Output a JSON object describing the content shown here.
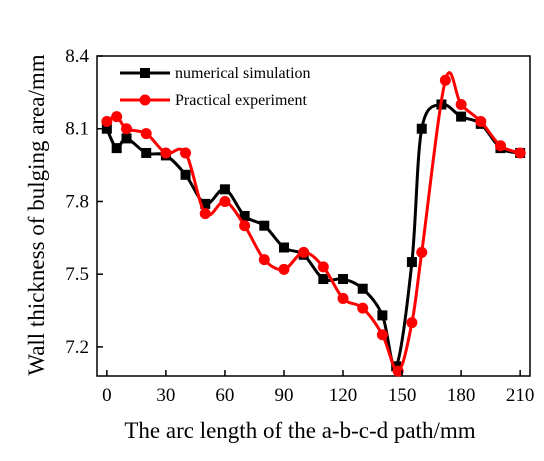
{
  "chart_data": {
    "type": "line",
    "xlabel": "The arc length of the a-b-c-d path/mm",
    "ylabel": "Wall thickness of bulging area/mm",
    "xlim": [
      -5,
      215
    ],
    "ylim": [
      7.08,
      8.4
    ],
    "xticks": [
      0,
      30,
      60,
      90,
      120,
      150,
      180,
      210
    ],
    "yticks": [
      7.2,
      7.5,
      7.8,
      8.1,
      8.4
    ],
    "xtick_labels": [
      "0",
      "30",
      "60",
      "90",
      "120",
      "150",
      "180",
      "210"
    ],
    "ytick_labels": [
      "7.2",
      "7.5",
      "7.8",
      "8.1",
      "8.4"
    ],
    "legend_position": "top-left",
    "grid": false,
    "series": [
      {
        "name": "numerical simulation",
        "color": "#000000",
        "marker": "square",
        "smooth": true,
        "x": [
          0,
          5,
          10,
          20,
          30,
          40,
          50,
          60,
          70,
          80,
          90,
          100,
          110,
          120,
          130,
          140,
          147,
          155,
          160,
          170,
          180,
          190,
          200,
          210
        ],
        "y": [
          8.1,
          8.02,
          8.06,
          8.0,
          7.99,
          7.91,
          7.79,
          7.85,
          7.74,
          7.7,
          7.61,
          7.58,
          7.48,
          7.48,
          7.44,
          7.33,
          7.12,
          7.55,
          8.1,
          8.2,
          8.15,
          8.12,
          8.02,
          8.0
        ]
      },
      {
        "name": "Practical experiment",
        "color": "#ff0000",
        "marker": "circle",
        "smooth": true,
        "x": [
          0,
          5,
          10,
          20,
          30,
          40,
          50,
          60,
          70,
          80,
          90,
          100,
          110,
          120,
          130,
          140,
          148,
          155,
          160,
          172,
          180,
          190,
          200,
          210
        ],
        "y": [
          8.13,
          8.15,
          8.1,
          8.08,
          8.0,
          8.0,
          7.75,
          7.8,
          7.7,
          7.56,
          7.52,
          7.59,
          7.53,
          7.4,
          7.36,
          7.25,
          7.1,
          7.3,
          7.59,
          8.3,
          8.2,
          8.13,
          8.03,
          8.0
        ]
      }
    ]
  }
}
